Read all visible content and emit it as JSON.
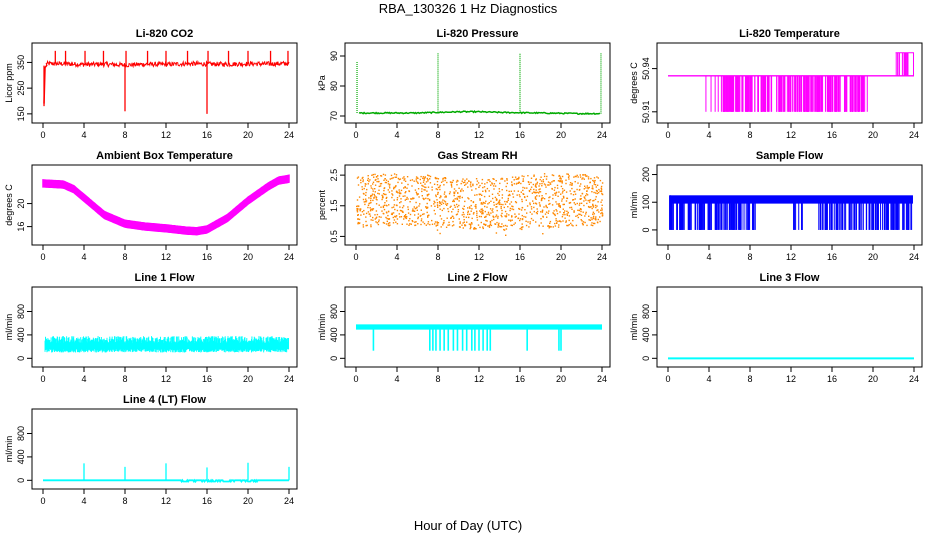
{
  "figure": {
    "title": "RBA_130326  1 Hz Diagnostics",
    "xlabel": "Hour of Day (UTC)"
  },
  "chart_data": [
    {
      "type": "line",
      "title": "Li-820 CO2",
      "ylabel": "Licor ppm",
      "color": "#ff0000",
      "xlim": [
        0,
        24
      ],
      "x_ticks": [
        0,
        4,
        8,
        12,
        16,
        20,
        24
      ],
      "ylim": [
        130,
        410
      ],
      "y_ticks": [
        150,
        250,
        350
      ],
      "series": [
        {
          "x": [
            0,
            0.2,
            2,
            4,
            6,
            8,
            10,
            12,
            14,
            16,
            18,
            20,
            22,
            24
          ],
          "y": [
            330,
            345,
            345,
            342,
            343,
            340,
            343,
            342,
            345,
            344,
            343,
            345,
            344,
            346
          ]
        }
      ],
      "spikes": [
        [
          0.1,
          180
        ],
        [
          1.2,
          395
        ],
        [
          2.2,
          395
        ],
        [
          4.1,
          395
        ],
        [
          5.9,
          395
        ],
        [
          8.0,
          160
        ],
        [
          8.1,
          395
        ],
        [
          10.2,
          395
        ],
        [
          12.0,
          395
        ],
        [
          14.1,
          395
        ],
        [
          16.0,
          150
        ],
        [
          16.1,
          395
        ],
        [
          18.1,
          395
        ],
        [
          20.0,
          395
        ],
        [
          22.2,
          395
        ],
        [
          23.9,
          395
        ]
      ]
    },
    {
      "type": "line",
      "title": "Li-820 Pressure",
      "ylabel": "kPa",
      "color": "#00aa00",
      "xlim": [
        0,
        24
      ],
      "x_ticks": [
        0,
        4,
        8,
        12,
        16,
        20,
        24
      ],
      "ylim": [
        69,
        93
      ],
      "y_ticks": [
        70,
        80,
        90
      ],
      "series": [
        {
          "x": [
            0,
            2,
            4,
            6,
            8,
            10,
            12,
            14,
            16,
            18,
            20,
            22,
            24
          ],
          "y": [
            71,
            71,
            71,
            71,
            71.2,
            71.4,
            71.4,
            71.2,
            71.1,
            71,
            70.9,
            70.8,
            70.8
          ]
        }
      ],
      "spikes": [
        [
          0.1,
          88
        ],
        [
          8.0,
          91
        ],
        [
          16.0,
          91
        ],
        [
          23.9,
          91
        ]
      ]
    },
    {
      "type": "line",
      "title": "Li-820 Temperature",
      "ylabel": "degrees C",
      "color": "#ff00ff",
      "xlim": [
        0,
        24
      ],
      "x_ticks": [
        0,
        4,
        8,
        12,
        16,
        20,
        24
      ],
      "ylim": [
        50.905,
        50.955
      ],
      "y_ticks": [
        50.91,
        50.94
      ],
      "y_tick_labels": [
        "50.91",
        "50.94"
      ],
      "series": [
        {
          "x": [
            0,
            24
          ],
          "y": [
            50.935,
            50.935
          ]
        }
      ],
      "bands": [
        [
          5.2,
          19.5
        ]
      ],
      "high_segment": [
        22.2,
        24.0,
        50.947
      ]
    },
    {
      "type": "line",
      "title": "Ambient Box Temperature",
      "ylabel": "degrees C",
      "color": "#ff00ff",
      "xlim": [
        0,
        24
      ],
      "x_ticks": [
        0,
        4,
        8,
        12,
        16,
        20,
        24
      ],
      "ylim": [
        13.5,
        26
      ],
      "y_ticks": [
        16,
        20
      ],
      "series": [
        {
          "x": [
            0,
            2,
            3,
            4,
            5,
            6,
            8,
            10,
            12,
            14,
            15,
            16,
            18,
            20,
            22,
            23,
            24
          ],
          "y": [
            23.5,
            23.3,
            22.5,
            21,
            19.5,
            18,
            16.5,
            16,
            15.7,
            15.3,
            15.2,
            15.5,
            17.5,
            20.5,
            23,
            24,
            24.3
          ]
        }
      ]
    },
    {
      "type": "scatter",
      "title": "Gas Stream RH",
      "ylabel": "percent",
      "color": "#ff8800",
      "xlim": [
        0,
        24
      ],
      "x_ticks": [
        0,
        4,
        8,
        12,
        16,
        20,
        24
      ],
      "ylim": [
        0.35,
        2.7
      ],
      "y_ticks": [
        0.5,
        1.5,
        2.5
      ],
      "series": [
        {
          "x": [
            0,
            24
          ],
          "y": [
            0.8,
            2.6
          ]
        }
      ]
    },
    {
      "type": "line",
      "title": "Sample Flow",
      "ylabel": "ml/min",
      "color": "#0000ff",
      "xlim": [
        0,
        24
      ],
      "x_ticks": [
        0,
        4,
        8,
        12,
        16,
        20,
        24
      ],
      "ylim": [
        -40,
        220
      ],
      "y_ticks": [
        0,
        100,
        200
      ],
      "series": [
        {
          "x": [
            0,
            24
          ],
          "y": [
            0,
            130
          ]
        }
      ]
    },
    {
      "type": "line",
      "title": "Line 1 Flow",
      "ylabel": "ml/min",
      "color": "#00ffff",
      "xlim": [
        0,
        24
      ],
      "x_ticks": [
        0,
        4,
        8,
        12,
        16,
        20,
        24
      ],
      "ylim": [
        -80,
        1150
      ],
      "y_ticks": [
        0,
        400,
        800
      ],
      "series": [
        {
          "x": [
            0,
            24
          ],
          "y": [
            60,
            390
          ]
        }
      ]
    },
    {
      "type": "line",
      "title": "Line 2 Flow",
      "ylabel": "ml/min",
      "color": "#00ffff",
      "xlim": [
        0,
        24
      ],
      "x_ticks": [
        0,
        4,
        8,
        12,
        16,
        20,
        24
      ],
      "ylim": [
        -80,
        1150
      ],
      "y_ticks": [
        0,
        400,
        800
      ],
      "series": [
        {
          "x": [
            0,
            24
          ],
          "y": [
            500,
            560
          ]
        }
      ]
    },
    {
      "type": "line",
      "title": "Line 3 Flow",
      "ylabel": "ml/min",
      "color": "#00ffff",
      "xlim": [
        0,
        24
      ],
      "x_ticks": [
        0,
        4,
        8,
        12,
        16,
        20,
        24
      ],
      "ylim": [
        -80,
        1150
      ],
      "y_ticks": [
        0,
        400,
        800
      ],
      "series": [
        {
          "x": [
            0,
            24
          ],
          "y": [
            0,
            0
          ]
        }
      ]
    },
    {
      "type": "line",
      "title": "Line 4 (LT) Flow",
      "ylabel": "ml/min",
      "color": "#00ffff",
      "xlim": [
        0,
        24
      ],
      "x_ticks": [
        0,
        4,
        8,
        12,
        16,
        20,
        24
      ],
      "ylim": [
        -80,
        1150
      ],
      "y_ticks": [
        0,
        400,
        800
      ],
      "series": [
        {
          "x": [
            0,
            24
          ],
          "y": [
            0,
            0
          ]
        }
      ],
      "spikes": [
        [
          4.0,
          290
        ],
        [
          8.0,
          230
        ],
        [
          12.0,
          290
        ],
        [
          16.0,
          220
        ],
        [
          20.0,
          300
        ],
        [
          24.0,
          230
        ]
      ]
    }
  ]
}
